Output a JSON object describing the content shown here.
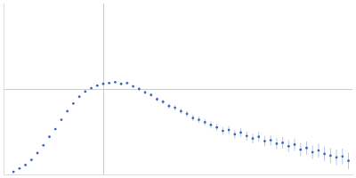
{
  "chart_data": {
    "type": "scatter",
    "x": [
      0.1,
      0.16,
      0.22,
      0.28,
      0.34,
      0.4,
      0.46,
      0.52,
      0.58,
      0.64,
      0.7,
      0.76,
      0.82,
      0.88,
      0.94,
      1.0,
      1.06,
      1.12,
      1.18,
      1.24,
      1.3,
      1.36,
      1.42,
      1.48,
      1.54,
      1.6,
      1.66,
      1.72,
      1.78,
      1.84,
      1.9,
      1.96,
      2.02,
      2.08,
      2.14,
      2.2,
      2.26,
      2.32,
      2.38,
      2.44,
      2.5,
      2.56,
      2.62,
      2.68,
      2.74,
      2.8,
      2.86,
      2.92,
      2.98,
      3.04,
      3.1,
      3.16,
      3.22,
      3.28,
      3.34,
      3.4,
      3.46
    ],
    "values": [
      0.03,
      0.07,
      0.11,
      0.17,
      0.25,
      0.34,
      0.44,
      0.53,
      0.64,
      0.74,
      0.83,
      0.91,
      0.97,
      1.01,
      1.04,
      1.06,
      1.07,
      1.08,
      1.06,
      1.07,
      1.03,
      1.0,
      0.96,
      0.93,
      0.88,
      0.85,
      0.8,
      0.78,
      0.74,
      0.71,
      0.66,
      0.64,
      0.61,
      0.58,
      0.55,
      0.51,
      0.52,
      0.47,
      0.49,
      0.45,
      0.42,
      0.44,
      0.39,
      0.4,
      0.36,
      0.37,
      0.33,
      0.35,
      0.29,
      0.31,
      0.26,
      0.28,
      0.24,
      0.22,
      0.2,
      0.21,
      0.16
    ],
    "errors": [
      0.004,
      0.004,
      0.005,
      0.005,
      0.005,
      0.006,
      0.006,
      0.006,
      0.007,
      0.007,
      0.008,
      0.008,
      0.009,
      0.01,
      0.01,
      0.011,
      0.012,
      0.013,
      0.014,
      0.015,
      0.016,
      0.018,
      0.02,
      0.021,
      0.023,
      0.025,
      0.027,
      0.029,
      0.031,
      0.033,
      0.035,
      0.037,
      0.039,
      0.041,
      0.043,
      0.045,
      0.047,
      0.05,
      0.052,
      0.054,
      0.056,
      0.058,
      0.061,
      0.063,
      0.065,
      0.068,
      0.07,
      0.072,
      0.075,
      0.077,
      0.08,
      0.082,
      0.085,
      0.088,
      0.09,
      0.093,
      0.096
    ],
    "color": "#3a66b8",
    "marker": "circle",
    "xlim": [
      0,
      3.5
    ],
    "xticks": [
      1
    ],
    "ylim": [
      0,
      2
    ],
    "yticks": [
      1
    ],
    "grid": true,
    "tick_labels": false
  }
}
